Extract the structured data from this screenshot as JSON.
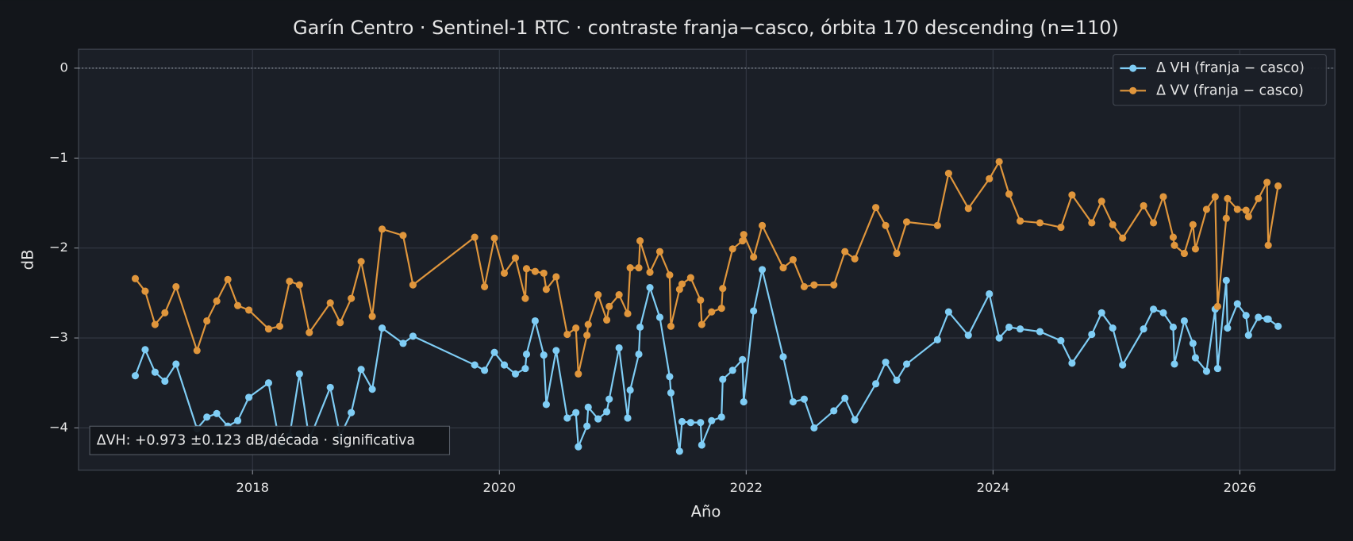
{
  "chart_data": {
    "type": "line",
    "title": "Garín Centro · Sentinel-1 RTC · contraste franja−casco, órbita 170 descending (n=110)",
    "xlabel": "Año",
    "ylabel": "dB",
    "annotation": "ΔVH: +0.973 ±0.123 dB/década · significativa",
    "xlim": [
      2016.59,
      2026.77
    ],
    "xticks": [
      2018,
      2020,
      2022,
      2024,
      2026
    ],
    "ylim": [
      -4.47,
      0.21
    ],
    "yticks": [
      0,
      {
        "value": -1,
        "label": "−1"
      },
      {
        "value": -2,
        "label": "−2"
      },
      {
        "value": -3,
        "label": "−3"
      },
      {
        "value": -4,
        "label": "−4"
      }
    ],
    "reference_line": 0,
    "grid": true,
    "legend": "upper right",
    "x": [
      2017.05,
      2017.13,
      2017.21,
      2017.29,
      2017.38,
      2017.55,
      2017.63,
      2017.71,
      2017.8,
      2017.88,
      2017.97,
      2018.13,
      2018.22,
      2018.3,
      2018.38,
      2018.46,
      2018.63,
      2018.71,
      2018.8,
      2018.88,
      2018.97,
      2019.05,
      2019.22,
      2019.3,
      2019.8,
      2019.88,
      2019.96,
      2020.04,
      2020.13,
      2020.21,
      2020.22,
      2020.29,
      2020.36,
      2020.38,
      2020.46,
      2020.55,
      2020.62,
      2020.64,
      2020.71,
      2020.72,
      2020.8,
      2020.87,
      2020.89,
      2020.97,
      2021.04,
      2021.06,
      2021.13,
      2021.14,
      2021.22,
      2021.3,
      2021.38,
      2021.39,
      2021.46,
      2021.48,
      2021.55,
      2021.63,
      2021.64,
      2021.72,
      2021.8,
      2021.81,
      2021.89,
      2021.97,
      2021.98,
      2022.06,
      2022.13,
      2022.3,
      2022.38,
      2022.47,
      2022.55,
      2022.71,
      2022.8,
      2022.88,
      2023.05,
      2023.13,
      2023.22,
      2023.3,
      2023.55,
      2023.64,
      2023.8,
      2023.97,
      2024.05,
      2024.13,
      2024.22,
      2024.38,
      2024.55,
      2024.64,
      2024.8,
      2024.88,
      2024.97,
      2025.05,
      2025.22,
      2025.3,
      2025.38,
      2025.46,
      2025.47,
      2025.55,
      2025.62,
      2025.64,
      2025.73,
      2025.8,
      2025.82,
      2025.89,
      2025.9,
      2025.98,
      2026.05,
      2026.07,
      2026.15,
      2026.22,
      2026.23,
      2026.31
    ],
    "series": [
      {
        "name": "Δ VH (franja − casco)",
        "color": "#7fcdf5",
        "values": [
          -3.42,
          -3.13,
          -3.38,
          -3.48,
          -3.29,
          -4.01,
          -3.88,
          -3.84,
          -3.98,
          -3.92,
          -3.66,
          -3.5,
          -4.18,
          -4.09,
          -3.4,
          -4.13,
          -3.55,
          -4.09,
          -3.83,
          -3.35,
          -3.57,
          -2.89,
          -3.06,
          -2.98,
          -3.3,
          -3.36,
          -3.16,
          -3.3,
          -3.4,
          -3.34,
          -3.18,
          -2.81,
          -3.19,
          -3.74,
          -3.14,
          -3.89,
          -3.83,
          -4.21,
          -3.98,
          -3.77,
          -3.9,
          -3.82,
          -3.68,
          -3.11,
          -3.89,
          -3.58,
          -3.18,
          -2.88,
          -2.44,
          -2.77,
          -3.43,
          -3.61,
          -4.26,
          -3.93,
          -3.94,
          -3.94,
          -4.19,
          -3.92,
          -3.88,
          -3.46,
          -3.36,
          -3.24,
          -3.71,
          -2.7,
          -2.24,
          -3.21,
          -3.71,
          -3.68,
          -4.0,
          -3.81,
          -3.67,
          -3.91,
          -3.51,
          -3.27,
          -3.47,
          -3.29,
          -3.02,
          -2.71,
          -2.97,
          -2.51,
          -3.0,
          -2.88,
          -2.9,
          -2.93,
          -3.03,
          -3.28,
          -2.96,
          -2.72,
          -2.89,
          -3.3,
          -2.9,
          -2.68,
          -2.72,
          -2.88,
          -3.29,
          -2.81,
          -3.06,
          -3.22,
          -3.37,
          -2.68,
          -3.34,
          -2.36,
          -2.89,
          -2.62,
          -2.75,
          -2.97,
          -2.77,
          -2.79,
          -2.79,
          -2.87
        ]
      },
      {
        "name": "Δ VV (franja − casco)",
        "color": "#e0963c",
        "values": [
          -2.34,
          -2.48,
          -2.85,
          -2.72,
          -2.43,
          -3.14,
          -2.81,
          -2.59,
          -2.35,
          -2.64,
          -2.69,
          -2.9,
          -2.87,
          -2.37,
          -2.41,
          -2.94,
          -2.61,
          -2.83,
          -2.56,
          -2.15,
          -2.76,
          -1.79,
          -1.86,
          -2.41,
          -1.88,
          -2.43,
          -1.89,
          -2.28,
          -2.11,
          -2.56,
          -2.23,
          -2.26,
          -2.28,
          -2.46,
          -2.32,
          -2.96,
          -2.89,
          -3.4,
          -2.97,
          -2.85,
          -2.52,
          -2.8,
          -2.65,
          -2.52,
          -2.73,
          -2.22,
          -2.22,
          -1.92,
          -2.27,
          -2.04,
          -2.3,
          -2.87,
          -2.46,
          -2.4,
          -2.33,
          -2.58,
          -2.85,
          -2.71,
          -2.67,
          -2.45,
          -2.01,
          -1.92,
          -1.85,
          -2.1,
          -1.75,
          -2.22,
          -2.13,
          -2.43,
          -2.41,
          -2.41,
          -2.04,
          -2.12,
          -1.55,
          -1.75,
          -2.06,
          -1.71,
          -1.75,
          -1.17,
          -1.56,
          -1.23,
          -1.04,
          -1.4,
          -1.7,
          -1.72,
          -1.77,
          -1.41,
          -1.72,
          -1.48,
          -1.74,
          -1.89,
          -1.53,
          -1.72,
          -1.43,
          -1.88,
          -1.97,
          -2.06,
          -1.74,
          -2.01,
          -1.57,
          -1.43,
          -2.65,
          -1.67,
          -1.45,
          -1.57,
          -1.58,
          -1.65,
          -1.45,
          -1.27,
          -1.97,
          -1.31
        ]
      }
    ]
  }
}
